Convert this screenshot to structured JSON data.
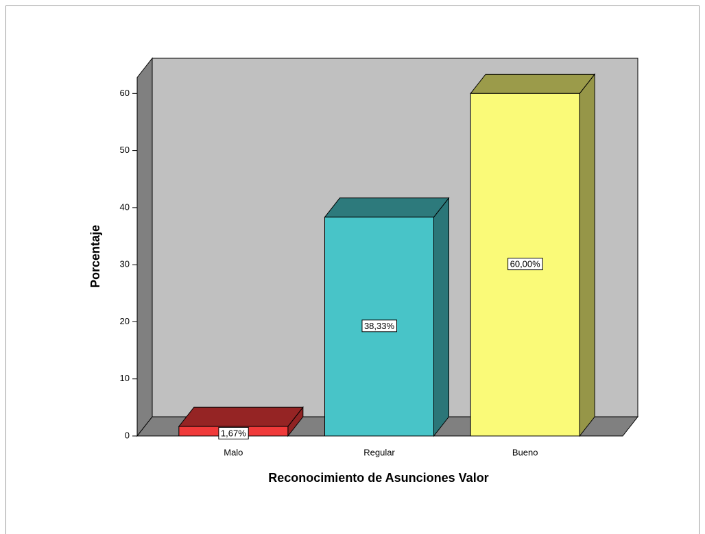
{
  "chart_data": {
    "type": "bar3d",
    "categories": [
      "Malo",
      "Regular",
      "Bueno"
    ],
    "values": [
      1.67,
      38.33,
      60
    ],
    "value_labels": [
      "1,67%",
      "38,33%",
      "60,00%"
    ],
    "colors": [
      "#f03a3a",
      "#48c4c8",
      "#fafa78"
    ],
    "ylabel": "Porcentaje",
    "xlabel": "Reconocimiento de Asunciones Valor",
    "ylim": [
      0,
      62.8
    ],
    "yticks": [
      0,
      10,
      20,
      30,
      40,
      50,
      60
    ]
  }
}
